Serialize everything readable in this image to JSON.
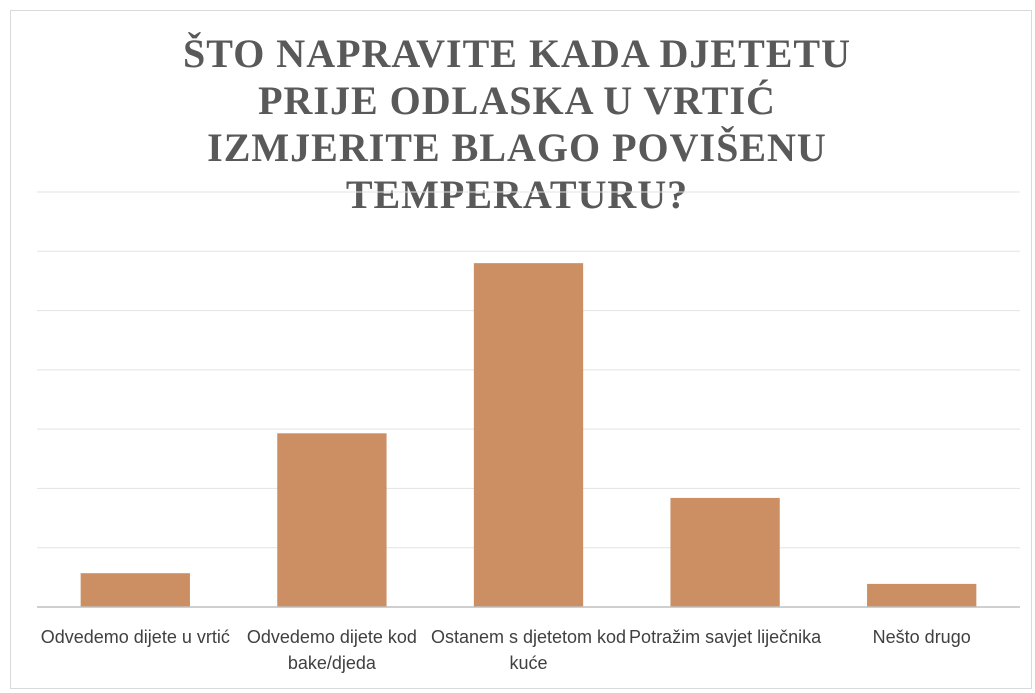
{
  "chart_data": {
    "type": "bar",
    "title": "ŠTO NAPRAVITE KADA DJETETU PRIJE ODLASKA U VRTIĆ IZMJERITE BLAGO POVIŠENU TEMPERATURU?",
    "categories": [
      "Odvedemo dijete u vrtić",
      "Odvedemo dijete kod bake/djeda",
      "Ostanem s djetetom kod kuće",
      "Potražim savjet liječnika",
      "Nešto drugo"
    ],
    "values": [
      0.57,
      2.93,
      5.8,
      1.84,
      0.39
    ],
    "color": "#cc8f64",
    "ylim": [
      0,
      7
    ],
    "yticks": [
      0,
      1,
      2,
      3,
      4,
      5,
      6,
      7
    ],
    "grid": true
  }
}
